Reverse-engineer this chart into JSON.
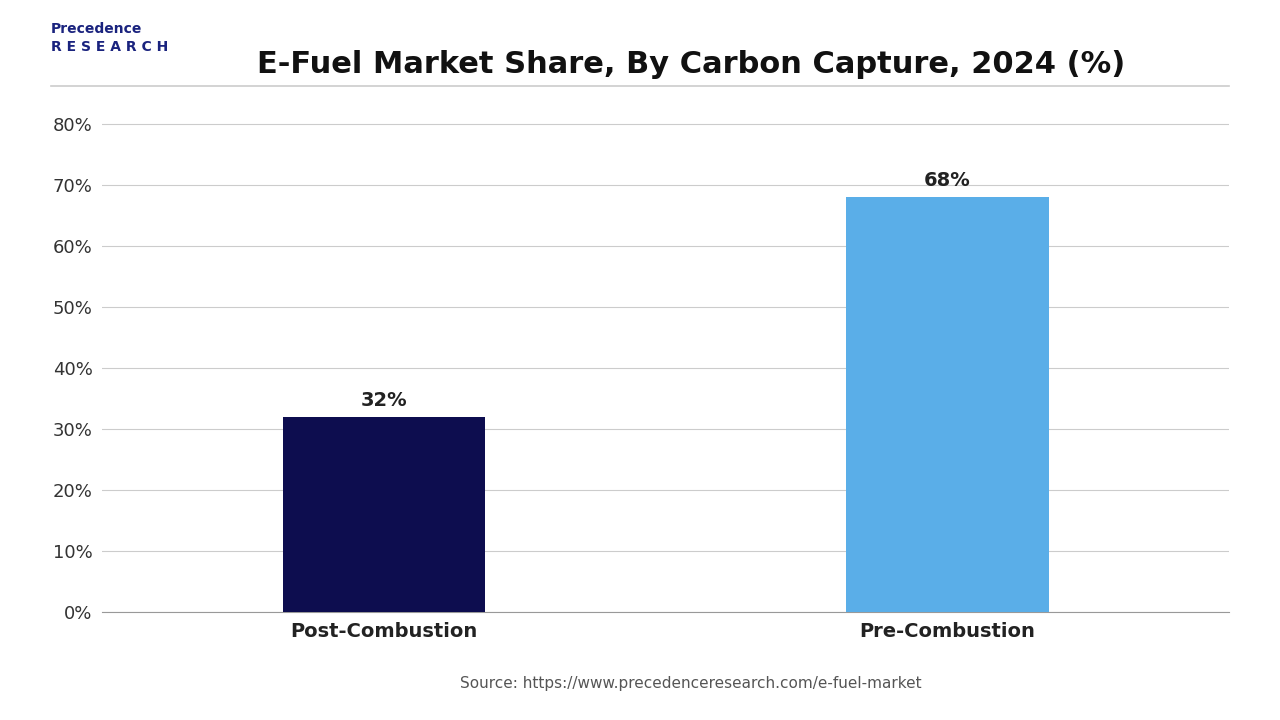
{
  "title": "E-Fuel Market Share, By Carbon Capture, 2024 (%)",
  "categories": [
    "Post-Combustion",
    "Pre-Combustion"
  ],
  "values": [
    32,
    68
  ],
  "bar_colors": [
    "#0d0d4f",
    "#5aaee8"
  ],
  "bar_labels": [
    "32%",
    "68%"
  ],
  "ylim": [
    0,
    85
  ],
  "yticks": [
    0,
    10,
    20,
    30,
    40,
    50,
    60,
    70,
    80
  ],
  "ytick_labels": [
    "0%",
    "10%",
    "20%",
    "30%",
    "40%",
    "50%",
    "60%",
    "70%",
    "80%"
  ],
  "source_text": "Source: https://www.precedenceresearch.com/e-fuel-market",
  "background_color": "#ffffff",
  "title_fontsize": 22,
  "label_fontsize": 14,
  "tick_fontsize": 13,
  "bar_label_fontsize": 14,
  "source_fontsize": 11
}
